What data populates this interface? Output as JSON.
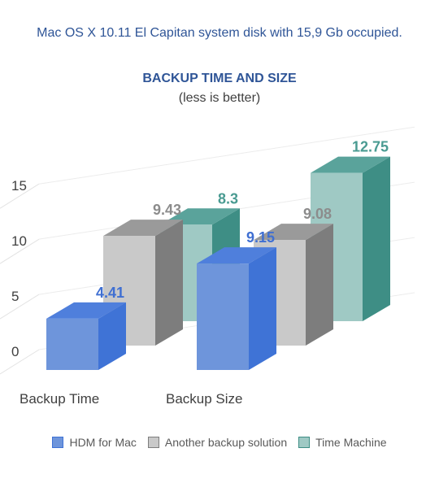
{
  "chart_data": {
    "type": "bar",
    "subtitle": "Mac OS X 10.11 El Capitan system disk with 15,9 Gb occupied.",
    "title": "BACKUP TIME AND SIZE",
    "note": "(less is better)",
    "categories": [
      "Backup Time",
      "Backup Size"
    ],
    "y_ticks": [
      "0",
      "5",
      "10",
      "15"
    ],
    "ylim": [
      0,
      15
    ],
    "grid": true,
    "legend_position": "bottom",
    "series": [
      {
        "name": "HDM for Mac",
        "values": [
          4.41,
          9.15
        ],
        "labels": [
          "4.41",
          "9.15"
        ],
        "color": "#6e95db",
        "side_color": "#3f73d6",
        "top_color": "#4f7fdc",
        "label_color": "#3f6fd2"
      },
      {
        "name": "Another backup solution",
        "values": [
          9.43,
          9.08
        ],
        "labels": [
          "9.43",
          "9.08"
        ],
        "color": "#c9c9c9",
        "side_color": "#7d7d7d",
        "top_color": "#9a9a9a",
        "label_color": "#8c8c8c"
      },
      {
        "name": "Time Machine",
        "values": [
          8.3,
          12.75
        ],
        "labels": [
          "8.3",
          "12.75"
        ],
        "color": "#9fc9c4",
        "side_color": "#3e8e85",
        "top_color": "#5aa39b",
        "label_color": "#4a9b92"
      }
    ]
  }
}
